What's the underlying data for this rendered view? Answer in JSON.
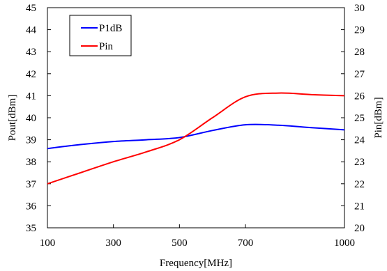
{
  "chart_data": {
    "type": "line",
    "title": "",
    "xlabel": "Frequency[MHz]",
    "ylabel": "Pout[dBm]",
    "y2label": "Pin[dBm]",
    "x_ticks": [
      100,
      300,
      500,
      700,
      1000
    ],
    "y_ticks": [
      35,
      36,
      37,
      38,
      39,
      40,
      41,
      42,
      43,
      44,
      45
    ],
    "y2_ticks": [
      20,
      21,
      22,
      23,
      24,
      25,
      26,
      27,
      28,
      29,
      30
    ],
    "xlim": [
      100,
      1000
    ],
    "ylim": [
      35,
      45
    ],
    "y2lim": [
      20,
      30
    ],
    "grid": false,
    "legend_position": "top-left",
    "series": [
      {
        "name": "P1dB",
        "axis": "left",
        "color": "#0000ff",
        "x": [
          100,
          200,
          300,
          400,
          500,
          600,
          700,
          800,
          900,
          1000
        ],
        "values": [
          38.6,
          38.78,
          38.92,
          39.0,
          39.1,
          39.42,
          39.68,
          39.66,
          39.55,
          39.45
        ]
      },
      {
        "name": "Pin",
        "axis": "right",
        "color": "#ff0000",
        "x": [
          100,
          200,
          300,
          400,
          500,
          600,
          700,
          800,
          900,
          1000
        ],
        "values": [
          22.0,
          22.5,
          23.0,
          23.45,
          24.0,
          25.0,
          25.95,
          26.12,
          26.05,
          26.0
        ]
      }
    ]
  }
}
